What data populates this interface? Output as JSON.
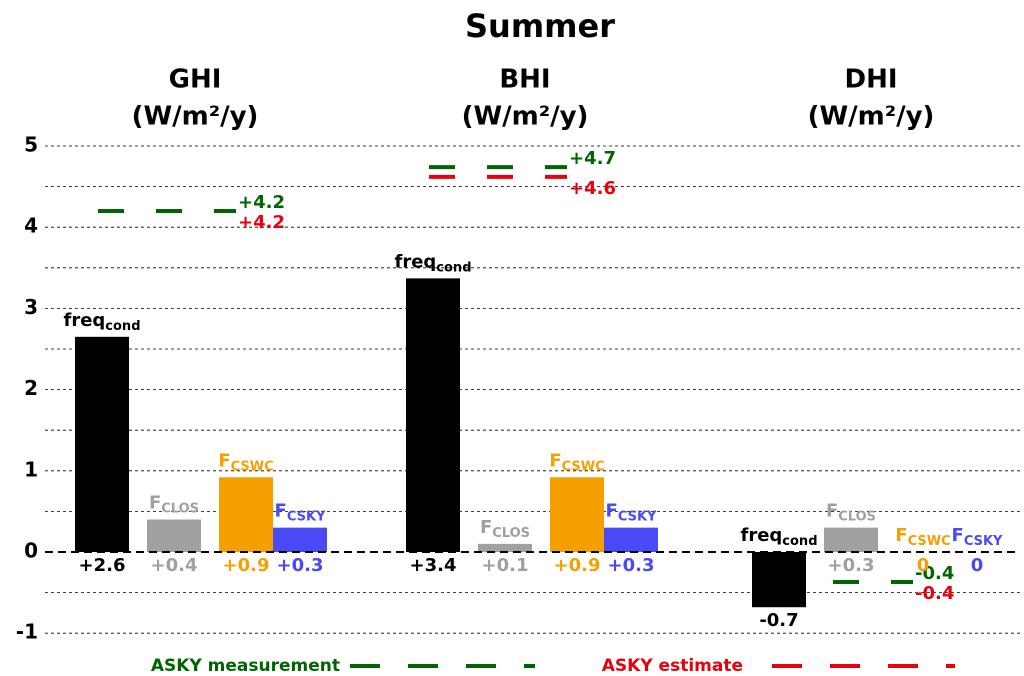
{
  "chart_data": {
    "type": "bar",
    "title": "Summer",
    "bars": [
      {
        "name": "freq",
        "sub": "cond",
        "color": "#000000"
      },
      {
        "name": "F",
        "sub": "CLOS",
        "color": "#a0a0a0"
      },
      {
        "name": "F",
        "sub": "CSWC",
        "color": "#f5a000"
      },
      {
        "name": "F",
        "sub": "CSKY",
        "color": "#4a4af5"
      }
    ],
    "groups": [
      {
        "name": "GHI",
        "unit": "(W/m²/y)",
        "values": [
          2.65,
          0.4,
          0.92,
          0.3
        ],
        "value_labels": [
          "+2.6",
          "+0.4",
          "+0.9",
          "+0.3"
        ],
        "asky_measurement": 4.2,
        "asky_measurement_label": "+4.2",
        "asky_estimate": 4.2,
        "asky_estimate_label": "+4.2"
      },
      {
        "name": "BHI",
        "unit": "(W/m²/y)",
        "values": [
          3.37,
          0.1,
          0.92,
          0.3
        ],
        "value_labels": [
          "+3.4",
          "+0.1",
          "+0.9",
          "+0.3"
        ],
        "asky_measurement": 4.74,
        "asky_measurement_label": "+4.7",
        "asky_estimate": 4.62,
        "asky_estimate_label": "+4.6"
      },
      {
        "name": "DHI",
        "unit": "(W/m²/y)",
        "values": [
          -0.68,
          0.3,
          0,
          0
        ],
        "value_labels": [
          "-0.7",
          "+0.3",
          "0",
          "0"
        ],
        "asky_measurement": -0.37,
        "asky_measurement_label": "-0.4",
        "asky_estimate": -0.37,
        "asky_estimate_label": "-0.4"
      }
    ],
    "legend": [
      {
        "name": "ASKY measurement",
        "color": "#006400"
      },
      {
        "name": "ASKY estimate",
        "color": "#e8000b"
      }
    ],
    "ylim": [
      -1.2,
      5.5
    ],
    "yticks": [
      -1,
      0,
      1,
      2,
      3,
      4,
      5
    ],
    "minor_yticks": [
      -0.5,
      0.5,
      1.5,
      2.5,
      3.5,
      4.5
    ],
    "grid": true
  }
}
